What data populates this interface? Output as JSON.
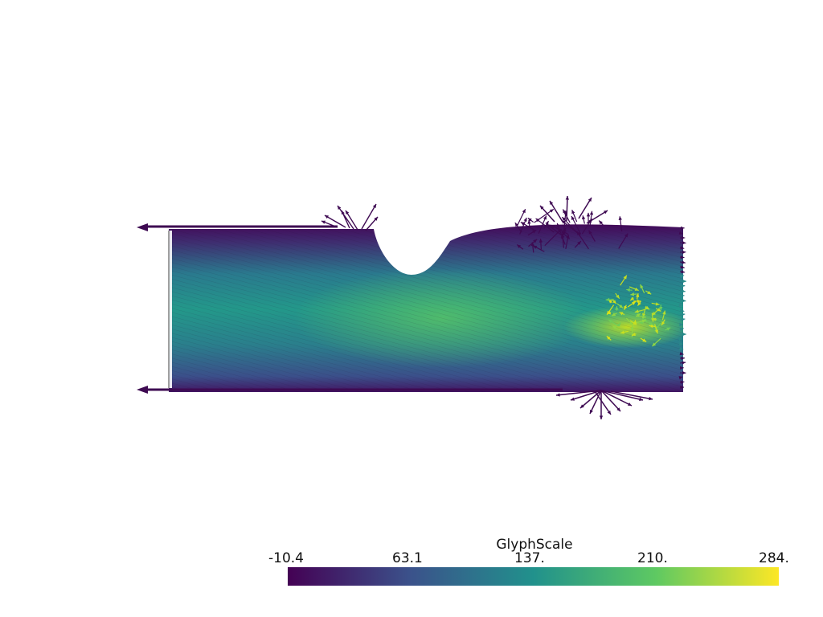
{
  "render": {
    "background": "#ffffff",
    "glyph_color_dark": "#3e0a52",
    "colormap": "viridis"
  },
  "scalar_bar": {
    "title": "GlyphScale",
    "tick_labels": [
      "-10.4",
      "63.1",
      "137.",
      "210.",
      "284."
    ],
    "range": [
      -10.4,
      284.0
    ],
    "colors": [
      "#440154",
      "#3b528b",
      "#21918c",
      "#5ec962",
      "#fde725"
    ]
  }
}
